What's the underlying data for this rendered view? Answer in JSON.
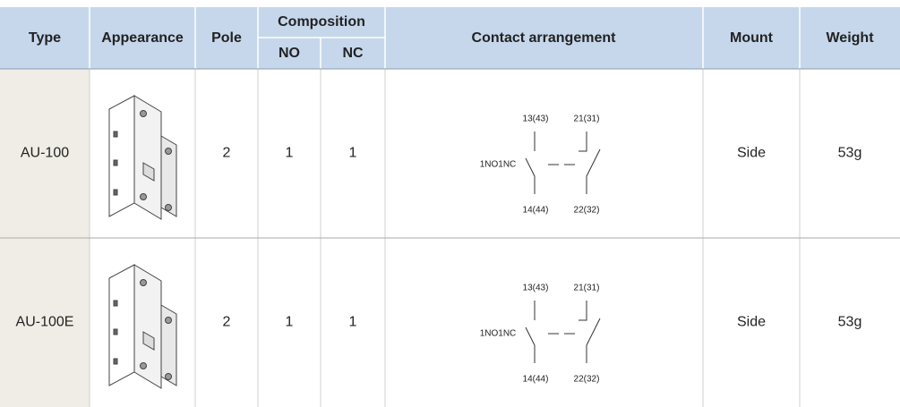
{
  "header": {
    "type": "Type",
    "appearance": "Appearance",
    "pole": "Pole",
    "composition": "Composition",
    "no": "NO",
    "nc": "NC",
    "contact": "Contact arrangement",
    "mount": "Mount",
    "weight": "Weight"
  },
  "rows": [
    {
      "type": "AU-100",
      "pole": "2",
      "no": "1",
      "nc": "1",
      "diagram": {
        "top_left": "13(43)",
        "top_right": "21(31)",
        "left": "1NO1NC",
        "bottom_left": "14(44)",
        "bottom_right": "22(32)"
      },
      "mount": "Side",
      "weight": "53g"
    },
    {
      "type": "AU-100E",
      "pole": "2",
      "no": "1",
      "nc": "1",
      "diagram": {
        "top_left": "13(43)",
        "top_right": "21(31)",
        "left": "1NO1NC",
        "bottom_left": "14(44)",
        "bottom_right": "22(32)"
      },
      "mount": "Side",
      "weight": "53g"
    }
  ]
}
